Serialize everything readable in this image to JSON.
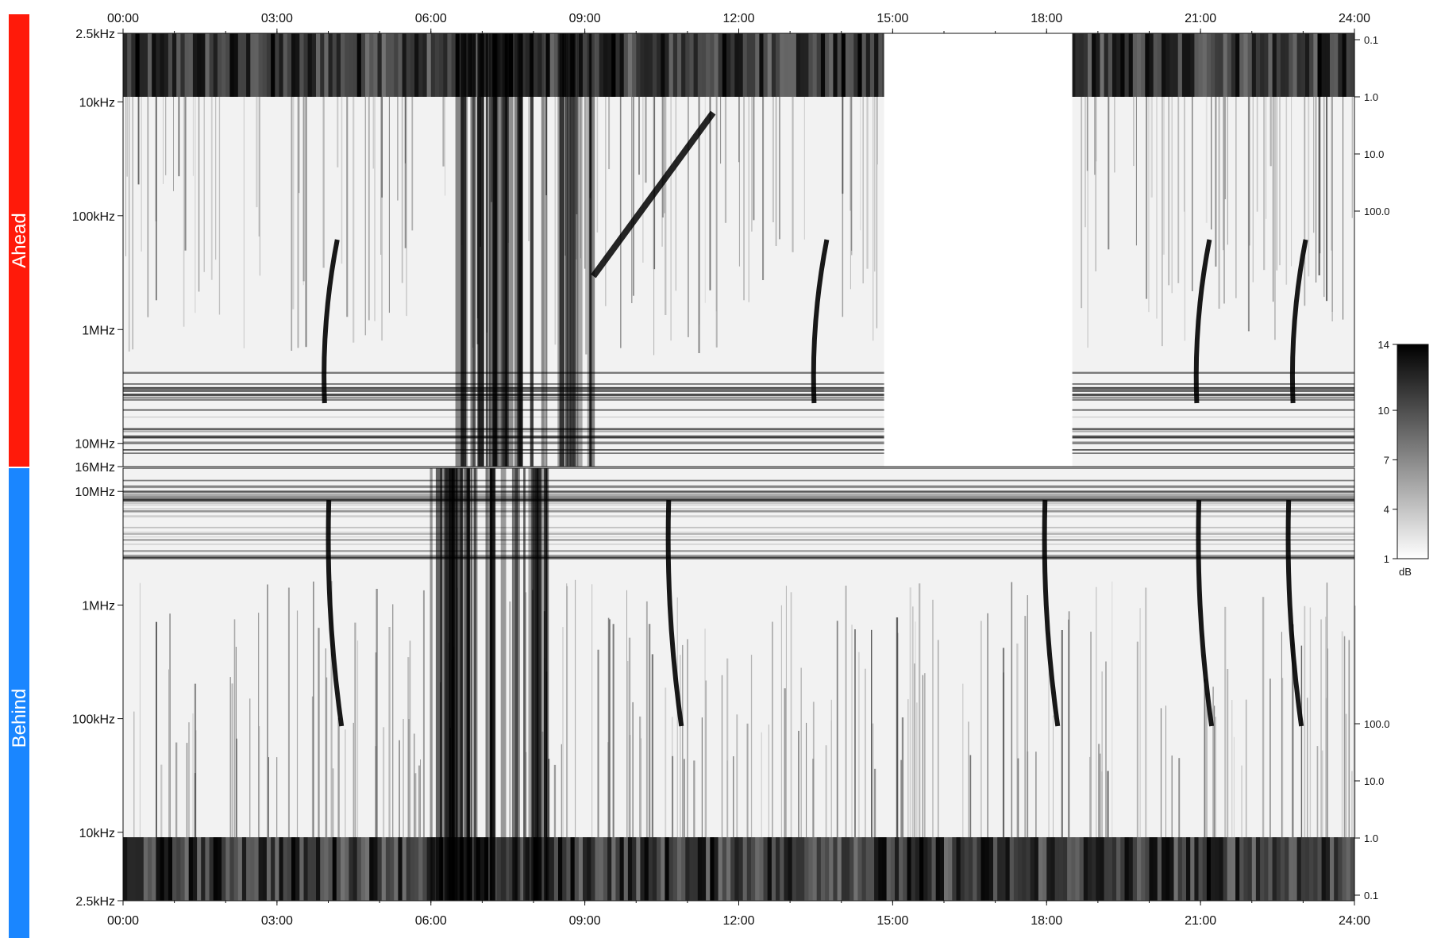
{
  "chart_data": {
    "type": "heatmap",
    "title": "",
    "x_ticks": [
      "00:00",
      "03:00",
      "06:00",
      "09:00",
      "12:00",
      "15:00",
      "18:00",
      "21:00",
      "24:00"
    ],
    "panels": [
      {
        "name": "Ahead",
        "side_color": "#ff1a0a",
        "freq_ticks": [
          "2.5kHz",
          "10kHz",
          "100kHz",
          "1MHz",
          "10MHz",
          "16MHz"
        ],
        "right_ticks": [
          "0.1",
          "1.0",
          "10.0",
          "100.0"
        ],
        "data_gap": [
          "14:50",
          "18:30"
        ],
        "features": [
          {
            "start": "03:45",
            "end": "04:10",
            "type": "burst"
          },
          {
            "start": "06:30",
            "end": "09:10",
            "type": "storm"
          },
          {
            "start": "09:10",
            "end": "11:30",
            "type": "drifting burst"
          },
          {
            "start": "13:20",
            "end": "13:40",
            "type": "burst"
          },
          {
            "start": "20:50",
            "end": "21:05",
            "type": "burst"
          },
          {
            "start": "22:40",
            "end": "23:00",
            "type": "burst"
          }
        ]
      },
      {
        "name": "Behind",
        "side_color": "#1a86ff",
        "freq_ticks": [
          "10MHz",
          "1MHz",
          "100kHz",
          "10kHz",
          "2.5kHz"
        ],
        "right_ticks": [
          "100.0",
          "10.0",
          "1.0",
          "0.1"
        ],
        "features": [
          {
            "start": "03:50",
            "end": "04:15",
            "type": "burst"
          },
          {
            "start": "06:00",
            "end": "08:20",
            "type": "storm"
          },
          {
            "start": "10:20",
            "end": "11:00",
            "type": "burst"
          },
          {
            "start": "17:30",
            "end": "18:30",
            "type": "burst"
          },
          {
            "start": "20:50",
            "end": "21:10",
            "type": "burst"
          },
          {
            "start": "22:30",
            "end": "23:00",
            "type": "burst"
          }
        ]
      }
    ],
    "colorbar": {
      "ticks": [
        "14",
        "10",
        "7",
        "4",
        "1"
      ],
      "unit": "dB",
      "range": [
        1,
        14
      ],
      "colors": [
        "#ffffff",
        "#000000"
      ]
    },
    "grid": false
  },
  "labels": {
    "ahead": "Ahead",
    "behind": "Behind",
    "colorbar_unit": "dB"
  }
}
